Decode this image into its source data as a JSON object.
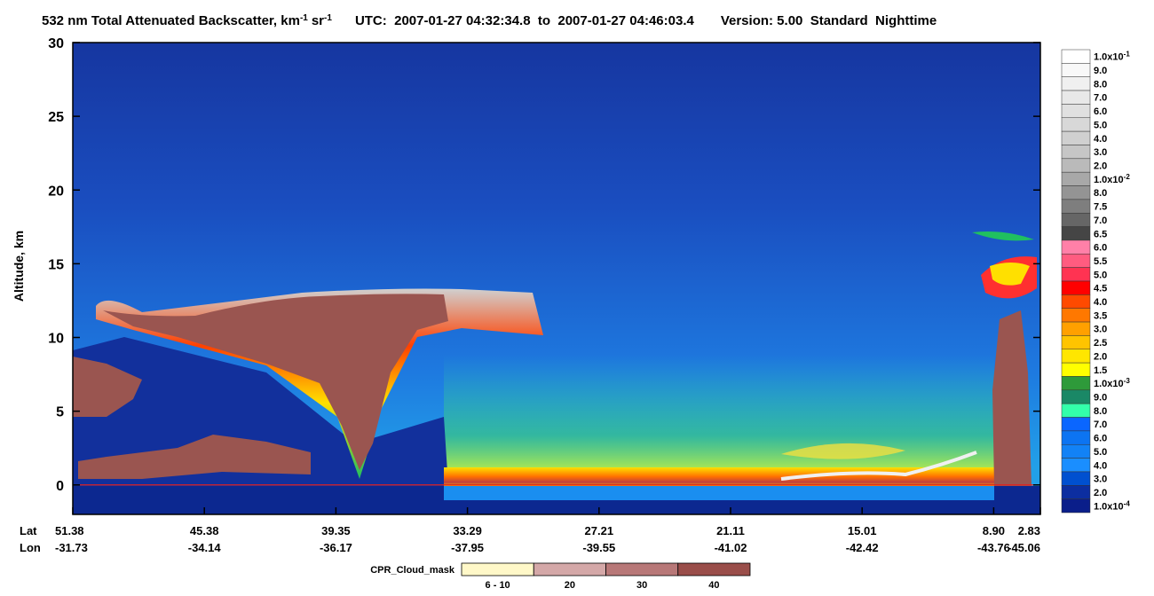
{
  "chart_data": {
    "type": "curtain",
    "title": [
      "532 nm Total Attenuated Backscatter, km",
      "-1",
      "sr",
      "-1",
      "UTC:  2007-01-27 04:32:34.8  to  2007-01-27 04:46:03.4",
      "Version: 5.00  Standard  Nighttime"
    ],
    "ylabel": "Altitude, km",
    "ylim": [
      -2,
      30
    ],
    "yticks": [
      0,
      5,
      10,
      15,
      20,
      25,
      30
    ],
    "x_row_labels": [
      "Lat",
      "Lon"
    ],
    "x_labels": [
      {
        "lat": "51.38",
        "lon": "-31.73"
      },
      {
        "lat": "45.38",
        "lon": "-34.14"
      },
      {
        "lat": "39.35",
        "lon": "-36.17"
      },
      {
        "lat": "33.29",
        "lon": "-37.95"
      },
      {
        "lat": "27.21",
        "lon": "-39.55"
      },
      {
        "lat": "21.11",
        "lon": "-41.02"
      },
      {
        "lat": "15.01",
        "lon": "-42.42"
      },
      {
        "lat": "8.90",
        "lon": "-43.76"
      },
      {
        "lat": "2.83",
        "lon": "-45.06"
      }
    ],
    "colorbar": [
      {
        "label": "1.0x10",
        "sup": "-1",
        "color": "#ffffff"
      },
      {
        "label": "9.0",
        "color": "#f8f8f8"
      },
      {
        "label": "8.0",
        "color": "#f0f0f0"
      },
      {
        "label": "7.0",
        "color": "#e8e8e8"
      },
      {
        "label": "6.0",
        "color": "#e0e0e0"
      },
      {
        "label": "5.0",
        "color": "#d8d8d8"
      },
      {
        "label": "4.0",
        "color": "#d0d0d0"
      },
      {
        "label": "3.0",
        "color": "#c6c6c6"
      },
      {
        "label": "2.0",
        "color": "#bababa"
      },
      {
        "label": "1.0x10",
        "sup": "-2",
        "color": "#a8a8a8"
      },
      {
        "label": "8.0",
        "color": "#949494"
      },
      {
        "label": "7.5",
        "color": "#7e7e7e"
      },
      {
        "label": "7.0",
        "color": "#666666"
      },
      {
        "label": "6.5",
        "color": "#454545"
      },
      {
        "label": "6.0",
        "color": "#ff80a8"
      },
      {
        "label": "5.5",
        "color": "#ff5c80"
      },
      {
        "label": "5.0",
        "color": "#ff3352"
      },
      {
        "label": "4.5",
        "color": "#ff0000"
      },
      {
        "label": "4.0",
        "color": "#ff4a00"
      },
      {
        "label": "3.5",
        "color": "#ff7800"
      },
      {
        "label": "3.0",
        "color": "#ffa000"
      },
      {
        "label": "2.5",
        "color": "#ffc400"
      },
      {
        "label": "2.0",
        "color": "#ffe600"
      },
      {
        "label": "1.5",
        "color": "#ffff00"
      },
      {
        "label": "1.0x10",
        "sup": "-3",
        "color": "#2e9a3a"
      },
      {
        "label": "9.0",
        "color": "#1a8866"
      },
      {
        "label": "8.0",
        "color": "#33ffaa"
      },
      {
        "label": "7.0",
        "color": "#0a66ff"
      },
      {
        "label": "6.0",
        "color": "#0c74f2"
      },
      {
        "label": "5.0",
        "color": "#1282f6"
      },
      {
        "label": "4.0",
        "color": "#1a8eff"
      },
      {
        "label": "3.0",
        "color": "#0050d0"
      },
      {
        "label": "2.0",
        "color": "#0c2ea0"
      },
      {
        "label": "1.0x10",
        "sup": "-4",
        "color": "#0a1e8a"
      }
    ],
    "cloud_mask": {
      "title": "CPR_Cloud_mask",
      "items": [
        {
          "label": "6 - 10",
          "color": "#fff8c8"
        },
        {
          "label": "20",
          "color": "#d4a8a8"
        },
        {
          "label": "30",
          "color": "#b87878"
        },
        {
          "label": "40",
          "color": "#9a4e4a"
        }
      ]
    }
  }
}
